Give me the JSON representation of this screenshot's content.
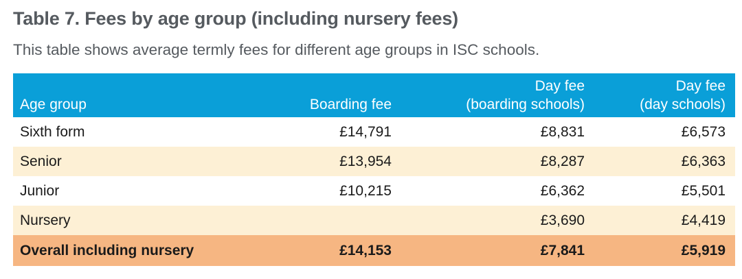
{
  "title": "Table 7. Fees by age group (including nursery fees)",
  "subtitle": "This table shows average termly fees for different age groups in ISC schools.",
  "colors": {
    "header_bg": "#0a9fd8",
    "alt_row_bg": "#fdf0d5",
    "total_row_bg": "#f6b682",
    "title_text": "#555a5f"
  },
  "table": {
    "headers": {
      "age_group": "Age group",
      "boarding_fee": "Boarding fee",
      "day_fee_boarding_line1": "Day fee",
      "day_fee_boarding_line2": "(boarding schools)",
      "day_fee_day_line1": "Day fee",
      "day_fee_day_line2": "(day schools)"
    },
    "rows": [
      {
        "age_group": "Sixth form",
        "boarding_fee": "£14,791",
        "day_fee_boarding": "£8,831",
        "day_fee_day": "£6,573"
      },
      {
        "age_group": "Senior",
        "boarding_fee": "£13,954",
        "day_fee_boarding": "£8,287",
        "day_fee_day": "£6,363"
      },
      {
        "age_group": "Junior",
        "boarding_fee": "£10,215",
        "day_fee_boarding": "£6,362",
        "day_fee_day": "£5,501"
      },
      {
        "age_group": "Nursery",
        "boarding_fee": "",
        "day_fee_boarding": "£3,690",
        "day_fee_day": "£4,419"
      }
    ],
    "total": {
      "age_group": "Overall including nursery",
      "boarding_fee": "£14,153",
      "day_fee_boarding": "£7,841",
      "day_fee_day": "£5,919"
    }
  }
}
